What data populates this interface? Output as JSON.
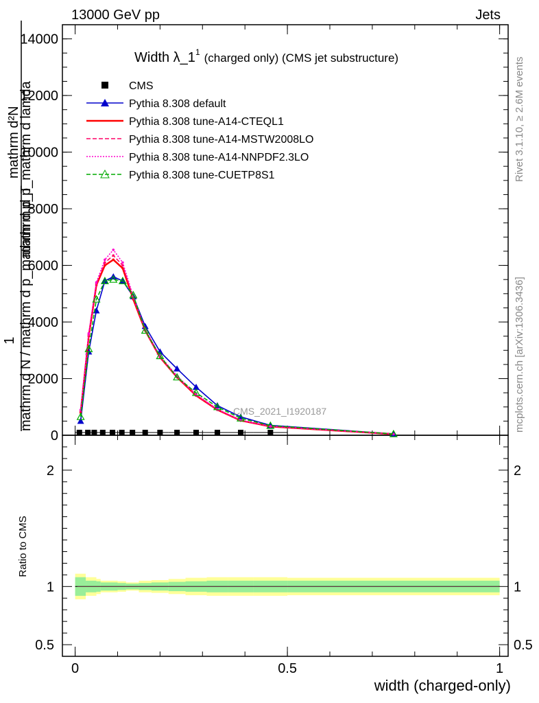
{
  "header": {
    "left": "13000 GeV pp",
    "right": "Jets"
  },
  "chart_data": {
    "type": "line",
    "title": "Width λ_1",
    "title_superscript": "1",
    "title_suffix": "(charged only) (CMS jet substructure)",
    "xlabel": "width (charged-only)",
    "ylabel_main_top": "mathrm d²N",
    "ylabel_main_mid": "mathrm d p_mathrm d lamda",
    "ylabel_main_bottom": "mathrm d N / mathrm d p_mathrm d p_T",
    "ylabel_main_one": "1",
    "ylabel_ratio": "Ratio to CMS",
    "xlim": [
      -0.03,
      1.02
    ],
    "ylim_main": [
      0,
      14500
    ],
    "ylim_ratio": [
      0.4,
      2.3
    ],
    "xticks": [
      0,
      0.5,
      1
    ],
    "xtick_labels": [
      "0",
      "0.5",
      "1"
    ],
    "yticks_main": [
      0,
      2000,
      4000,
      6000,
      8000,
      10000,
      12000,
      14000
    ],
    "ytick_labels_main": [
      "0",
      "2000",
      "4000",
      "6000",
      "8000",
      "10000",
      "12000",
      "14000"
    ],
    "yticks_ratio": [
      0.5,
      1,
      2
    ],
    "ytick_labels_ratio": [
      "0.5",
      "1",
      "2"
    ],
    "data_points": [
      {
        "x": 0.0,
        "y": 0,
        "x_lo": 0.0,
        "x_hi": 0.025
      },
      {
        "x": 0.025,
        "y": 0,
        "x_lo": 0.0125,
        "x_hi": 0.037
      },
      {
        "x": 0.045,
        "y": 0,
        "x_lo": 0.037,
        "x_hi": 0.055
      },
      {
        "x": 0.065,
        "y": 0,
        "x_lo": 0.055,
        "x_hi": 0.075
      },
      {
        "x": 0.088,
        "y": 0,
        "x_lo": 0.075,
        "x_hi": 0.1
      },
      {
        "x": 0.11,
        "y": 0,
        "x_lo": 0.1,
        "x_hi": 0.12
      },
      {
        "x": 0.135,
        "y": 0,
        "x_lo": 0.12,
        "x_hi": 0.15
      },
      {
        "x": 0.165,
        "y": 0,
        "x_lo": 0.15,
        "x_hi": 0.18
      },
      {
        "x": 0.2,
        "y": 0,
        "x_lo": 0.18,
        "x_hi": 0.22
      },
      {
        "x": 0.24,
        "y": 0,
        "x_lo": 0.22,
        "x_hi": 0.26
      },
      {
        "x": 0.285,
        "y": 0,
        "x_lo": 0.26,
        "x_hi": 0.31
      },
      {
        "x": 0.335,
        "y": 0,
        "x_lo": 0.31,
        "x_hi": 0.36
      },
      {
        "x": 0.39,
        "y": 0,
        "x_lo": 0.36,
        "x_hi": 0.42
      },
      {
        "x": 0.46,
        "y": 0,
        "x_lo": 0.42,
        "x_hi": 0.5
      }
    ],
    "ratio_band": {
      "edges": [
        0,
        0.025,
        0.05,
        0.06,
        0.075,
        0.1,
        0.12,
        0.15,
        0.18,
        0.22,
        0.26,
        0.31,
        0.36,
        0.42,
        0.5,
        1.0
      ],
      "inner": [
        0.08,
        0.05,
        0.045,
        0.035,
        0.035,
        0.03,
        0.025,
        0.03,
        0.035,
        0.04,
        0.045,
        0.05,
        0.05,
        0.05,
        0.05
      ],
      "outer": [
        0.11,
        0.08,
        0.065,
        0.05,
        0.05,
        0.045,
        0.035,
        0.05,
        0.055,
        0.065,
        0.075,
        0.08,
        0.08,
        0.08,
        0.075
      ]
    },
    "series": [
      {
        "name": "CMS",
        "color": "#000000",
        "marker": "square",
        "line": "none",
        "x": [
          0.01,
          0.03,
          0.045,
          0.065,
          0.088,
          0.11,
          0.135,
          0.165,
          0.2,
          0.24,
          0.285,
          0.335,
          0.39,
          0.46
        ],
        "y": [
          0,
          0,
          0,
          0,
          0,
          0,
          0,
          0,
          0,
          0,
          0,
          0,
          0,
          0
        ]
      },
      {
        "name": "Pythia 8.308 default",
        "color": "#0000cc",
        "marker": "triangle-filled",
        "line": "solid",
        "x": [
          0.013,
          0.032,
          0.05,
          0.07,
          0.09,
          0.112,
          0.137,
          0.165,
          0.2,
          0.24,
          0.285,
          0.335,
          0.39,
          0.46,
          0.75
        ],
        "y": [
          500,
          2950,
          4400,
          5450,
          5600,
          5450,
          4900,
          3850,
          2950,
          2350,
          1700,
          1050,
          650,
          350,
          50
        ]
      },
      {
        "name": "Pythia 8.308 tune-A14-CTEQL1",
        "color": "#ff0000",
        "marker": "dot",
        "line": "solid",
        "x": [
          0.013,
          0.032,
          0.05,
          0.07,
          0.09,
          0.112,
          0.137,
          0.165,
          0.2,
          0.24,
          0.285,
          0.335,
          0.39,
          0.46,
          0.75
        ],
        "y": [
          800,
          3500,
          5300,
          6000,
          6200,
          5900,
          4800,
          3700,
          2750,
          2050,
          1400,
          900,
          520,
          310,
          40
        ]
      },
      {
        "name": "Pythia 8.308 tune-A14-MSTW2008LO",
        "color": "#ff0066",
        "marker": "dot",
        "line": "dashed",
        "x": [
          0.013,
          0.032,
          0.05,
          0.07,
          0.09,
          0.112,
          0.137,
          0.165,
          0.2,
          0.24,
          0.285,
          0.335,
          0.39,
          0.46,
          0.75
        ],
        "y": [
          850,
          3550,
          5350,
          6100,
          6350,
          6000,
          4850,
          3700,
          2750,
          2050,
          1400,
          900,
          520,
          310,
          40
        ]
      },
      {
        "name": "Pythia 8.308 tune-A14-NNPDF2.3LO",
        "color": "#ff00cc",
        "marker": "dot",
        "line": "dotted",
        "x": [
          0.013,
          0.032,
          0.05,
          0.07,
          0.09,
          0.112,
          0.137,
          0.165,
          0.2,
          0.24,
          0.285,
          0.335,
          0.39,
          0.46,
          0.75
        ],
        "y": [
          900,
          3600,
          5400,
          6200,
          6550,
          6100,
          4900,
          3750,
          2800,
          2100,
          1450,
          920,
          530,
          320,
          40
        ]
      },
      {
        "name": "Pythia 8.308 tune-CUETP8S1",
        "color": "#00aa00",
        "marker": "triangle-open",
        "line": "dashed",
        "x": [
          0.013,
          0.032,
          0.05,
          0.07,
          0.09,
          0.112,
          0.137,
          0.165,
          0.2,
          0.24,
          0.285,
          0.335,
          0.39,
          0.46,
          0.75
        ],
        "y": [
          650,
          3050,
          4800,
          5450,
          5500,
          5450,
          4950,
          3700,
          2800,
          2050,
          1500,
          1000,
          600,
          340,
          45
        ]
      }
    ],
    "legend_placement": "top-left",
    "analysis_label": "CMS_2021_I1920187"
  },
  "side_label_top": "Rivet 3.1.10, ≥ 2.6M events",
  "side_label_bottom": "mcplots.cern.ch [arXiv:1306.3436]"
}
